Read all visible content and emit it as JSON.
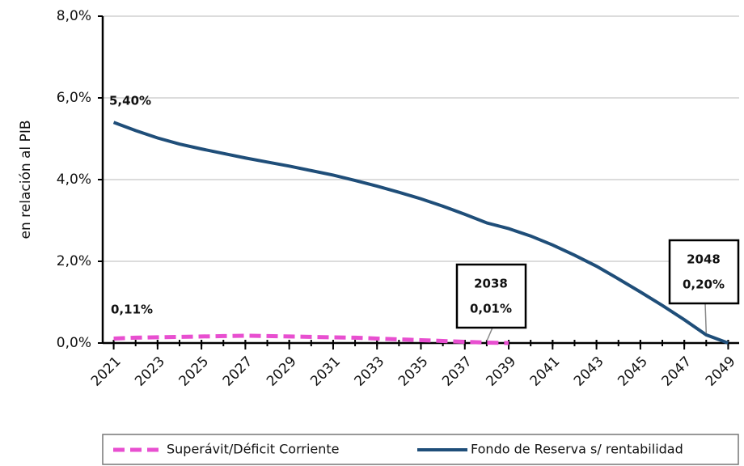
{
  "chart_data": {
    "type": "line",
    "y_label": "en relación al PIB",
    "x": [
      2021,
      2022,
      2023,
      2024,
      2025,
      2026,
      2027,
      2028,
      2029,
      2030,
      2031,
      2032,
      2033,
      2034,
      2035,
      2036,
      2037,
      2038,
      2039,
      2040,
      2041,
      2042,
      2043,
      2044,
      2045,
      2046,
      2047,
      2048,
      2049
    ],
    "xlim": [
      2020.5,
      2049.5
    ],
    "xticks": [
      2021,
      2023,
      2025,
      2027,
      2029,
      2031,
      2033,
      2035,
      2037,
      2039,
      2041,
      2043,
      2045,
      2047,
      2049
    ],
    "ylim": [
      0,
      8
    ],
    "yticks": [
      {
        "value": 0,
        "label": "0,0%"
      },
      {
        "value": 2,
        "label": "2,0%"
      },
      {
        "value": 4,
        "label": "4,0%"
      },
      {
        "value": 6,
        "label": "6,0%"
      },
      {
        "value": 8,
        "label": "8,0%"
      }
    ],
    "grid": true,
    "legend": "bottom",
    "series": [
      {
        "name": "Superávit/Déficit Corriente",
        "color": "#e84fd0",
        "dashed": true,
        "values": [
          0.11,
          0.13,
          0.14,
          0.15,
          0.16,
          0.17,
          0.18,
          0.17,
          0.16,
          0.15,
          0.14,
          0.13,
          0.11,
          0.09,
          0.07,
          0.05,
          0.03,
          0.01,
          0,
          null,
          null,
          null,
          null,
          null,
          null,
          null,
          null,
          null,
          null
        ]
      },
      {
        "name": "Fondo de Reserva s/ rentabilidad",
        "color": "#1f4e79",
        "dashed": false,
        "values": [
          5.4,
          5.2,
          5.02,
          4.87,
          4.75,
          4.64,
          4.53,
          4.43,
          4.33,
          4.22,
          4.11,
          3.98,
          3.84,
          3.69,
          3.53,
          3.35,
          3.15,
          2.94,
          2.8,
          2.62,
          2.4,
          2.15,
          1.88,
          1.57,
          1.25,
          0.92,
          0.57,
          0.2,
          0
        ]
      }
    ],
    "annotations": [
      {
        "series": 1,
        "x": 2021,
        "text": [
          "5,40%"
        ],
        "boxed": false
      },
      {
        "series": 0,
        "x": 2021,
        "text": [
          "0,11%"
        ],
        "boxed": false
      },
      {
        "series": 0,
        "x": 2038,
        "text": [
          "2038",
          "0,01%"
        ],
        "boxed": true
      },
      {
        "series": 1,
        "x": 2048,
        "text": [
          "2048",
          "0,20%"
        ],
        "boxed": true
      }
    ]
  }
}
